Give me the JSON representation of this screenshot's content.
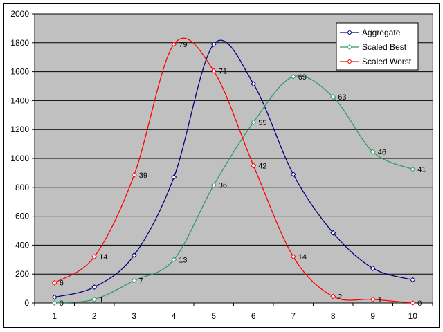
{
  "chart_data": {
    "type": "line",
    "title": "",
    "xlabel": "",
    "ylabel": "",
    "categories": [
      1,
      2,
      3,
      4,
      5,
      6,
      7,
      8,
      9,
      10
    ],
    "ylim": [
      0,
      2000
    ],
    "yticks": [
      0,
      200,
      400,
      600,
      800,
      1000,
      1200,
      1400,
      1600,
      1800,
      2000
    ],
    "grid": "horizontal",
    "background_color": "#c0c0c0",
    "legend_position": "top-right",
    "smoothed": true,
    "series": [
      {
        "name": "Aggregate",
        "color": "#000080",
        "values": [
          40,
          110,
          330,
          870,
          1790,
          1515,
          890,
          485,
          240,
          160
        ],
        "labels": []
      },
      {
        "name": "Scaled Best",
        "color": "#339966",
        "values": [
          0,
          25,
          155,
          300,
          815,
          1250,
          1565,
          1425,
          1045,
          925
        ],
        "labels": [
          "0",
          "1",
          "7",
          "13",
          "36",
          "55",
          "69",
          "63",
          "46",
          "41"
        ]
      },
      {
        "name": "Scaled Worst",
        "color": "#ff0000",
        "values": [
          140,
          320,
          885,
          1790,
          1605,
          950,
          320,
          45,
          25,
          0
        ],
        "labels": [
          "6",
          "14",
          "39",
          "79",
          "71",
          "42",
          "14",
          "2",
          "1",
          "0"
        ]
      }
    ]
  }
}
